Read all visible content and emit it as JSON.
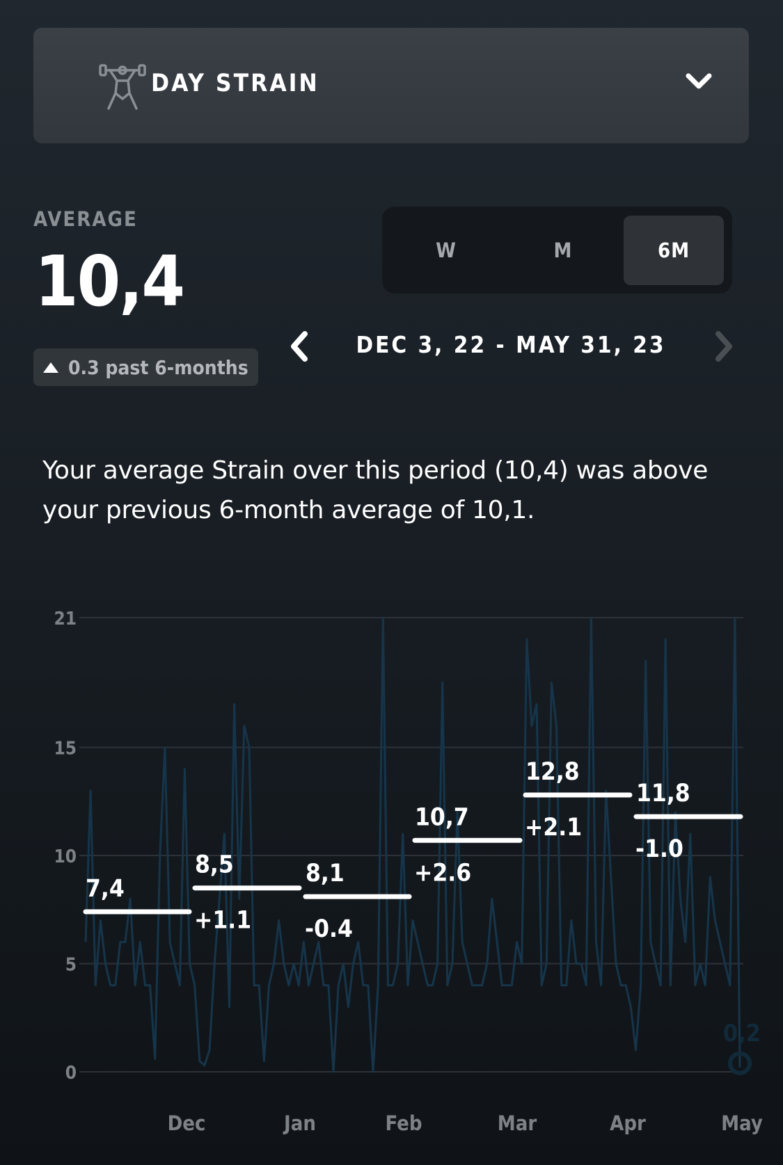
{
  "header": {
    "icon": "weightlifter-icon",
    "title": "DAY STRAIN",
    "dropdown_icon": "chevron-down-icon"
  },
  "summary": {
    "label": "AVERAGE",
    "value": "10,4",
    "change_badge": "0.3 past 6-months",
    "change_direction": "up"
  },
  "range_tabs": [
    {
      "label": "W",
      "active": false
    },
    {
      "label": "M",
      "active": false
    },
    {
      "label": "6M",
      "active": true
    }
  ],
  "date_nav": {
    "range": "DEC 3, 22 - MAY 31, 23",
    "prev_icon": "chevron-left-icon",
    "next_icon": "chevron-right-icon",
    "next_enabled": false
  },
  "description": "Your average Strain over this period (10,4) was above your previous 6-month average of 10,1.",
  "colors": {
    "background": "#161b21",
    "line": "#16354a",
    "average_bar": "#ffffff",
    "grid": "#2c3238"
  },
  "chart_data": {
    "type": "line",
    "ylim": [
      0,
      21
    ],
    "yticks": [
      "0",
      "5",
      "10",
      "15",
      "21"
    ],
    "x_tick_labels": [
      "Dec",
      "Jan",
      "Feb",
      "Mar",
      "Apr",
      "May"
    ],
    "grid": true,
    "monthly_averages": [
      {
        "value": "7,4",
        "change": ""
      },
      {
        "value": "8,5",
        "change": "+1.1"
      },
      {
        "value": "8,1",
        "change": "-0.4"
      },
      {
        "value": "10,7",
        "change": "+2.6"
      },
      {
        "value": "12,8",
        "change": "+2.1"
      },
      {
        "value": "11,8",
        "change": "-1.0"
      }
    ],
    "daily_strain": [
      6,
      13,
      4,
      7,
      5,
      4,
      4,
      6,
      6,
      8,
      4,
      6,
      4,
      4,
      0.6,
      10,
      15,
      6,
      5,
      4,
      14,
      5,
      4,
      0.5,
      0.3,
      1,
      5,
      8,
      11,
      3,
      17,
      8,
      16,
      15,
      4,
      4,
      0.5,
      4,
      5,
      7,
      5,
      4,
      5,
      4,
      6,
      4,
      5,
      6,
      4,
      4,
      0,
      4,
      5,
      3,
      5,
      6,
      4,
      4,
      0,
      4,
      21,
      4,
      4,
      5,
      11,
      4,
      7,
      6,
      5,
      4,
      4,
      5,
      18,
      4,
      5,
      12,
      6,
      5,
      4,
      4,
      4,
      5,
      8,
      6,
      4,
      4,
      4,
      6,
      5,
      20,
      16,
      17,
      4,
      5,
      18,
      16,
      4,
      4,
      7,
      5,
      5,
      4,
      21,
      6,
      4,
      13,
      9,
      5,
      4,
      4,
      3,
      1,
      4,
      19,
      6,
      5,
      4,
      20,
      4,
      12,
      8,
      6,
      11,
      4,
      5,
      4,
      9,
      7,
      6,
      5,
      4,
      21,
      0.2
    ],
    "last_value_label": "0,2"
  }
}
